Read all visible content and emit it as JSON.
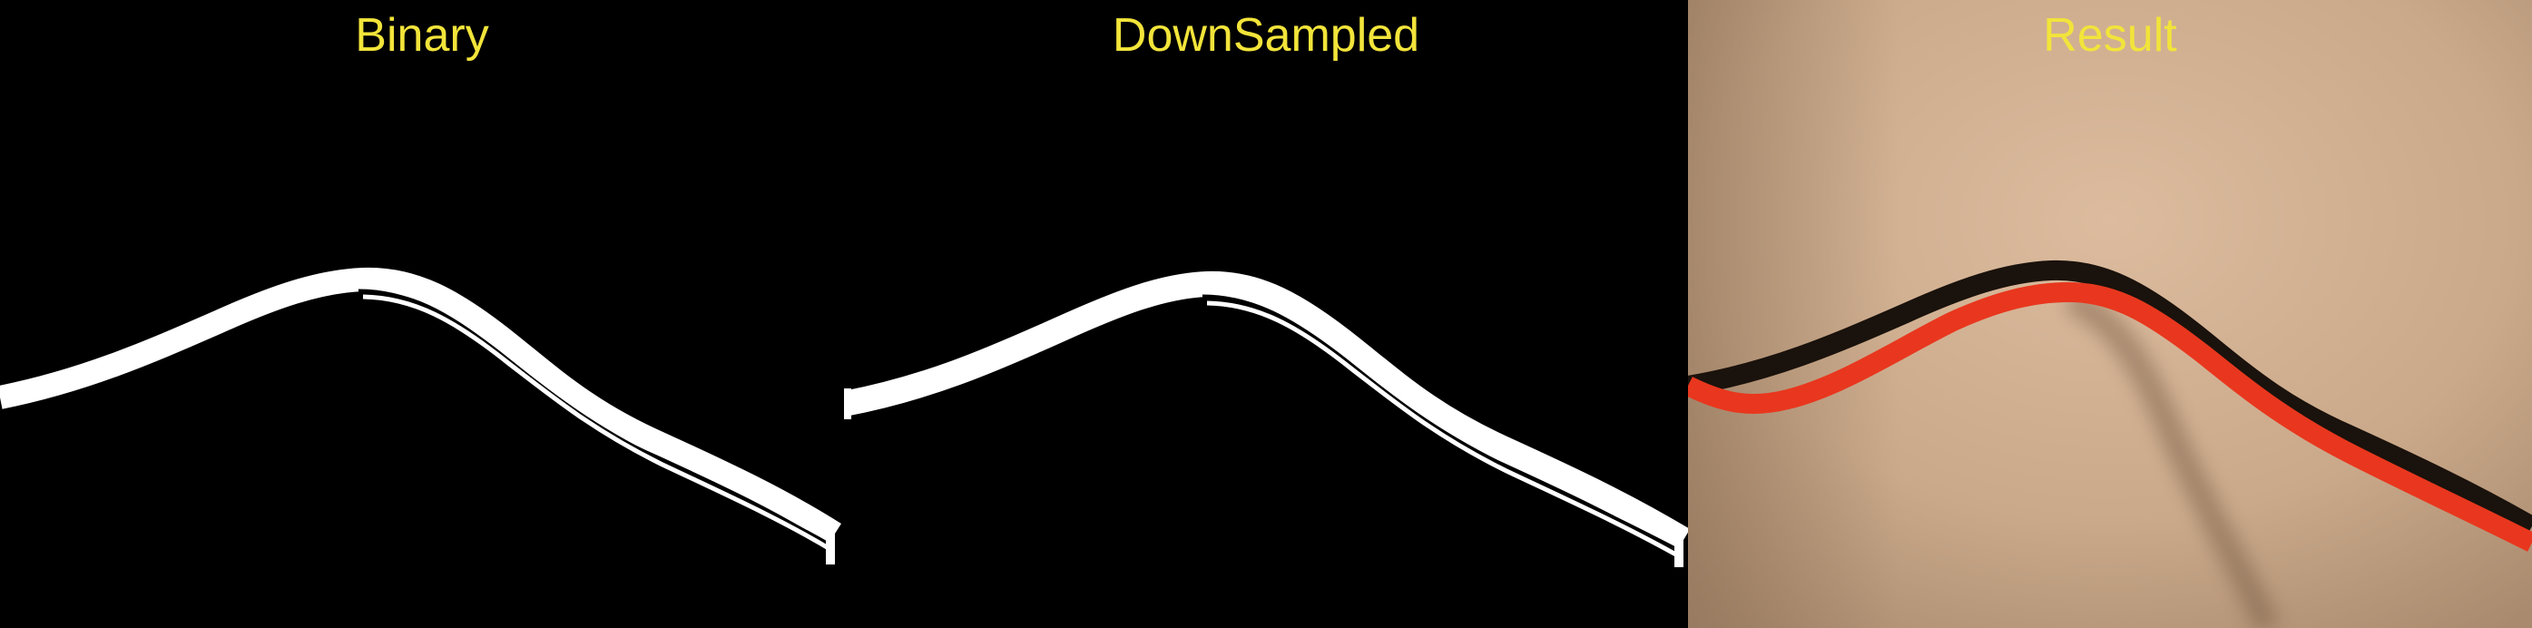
{
  "panels": [
    {
      "title": "Binary"
    },
    {
      "title": "DownSampled"
    },
    {
      "title": "Result"
    }
  ],
  "colors": {
    "title_text": "#f2e43a",
    "mask_background": "#000000",
    "mask_foreground": "#ffffff",
    "result_overlay": "#e8371e",
    "result_background": "#c8a88a",
    "cable_shadow": "#1a120c"
  }
}
